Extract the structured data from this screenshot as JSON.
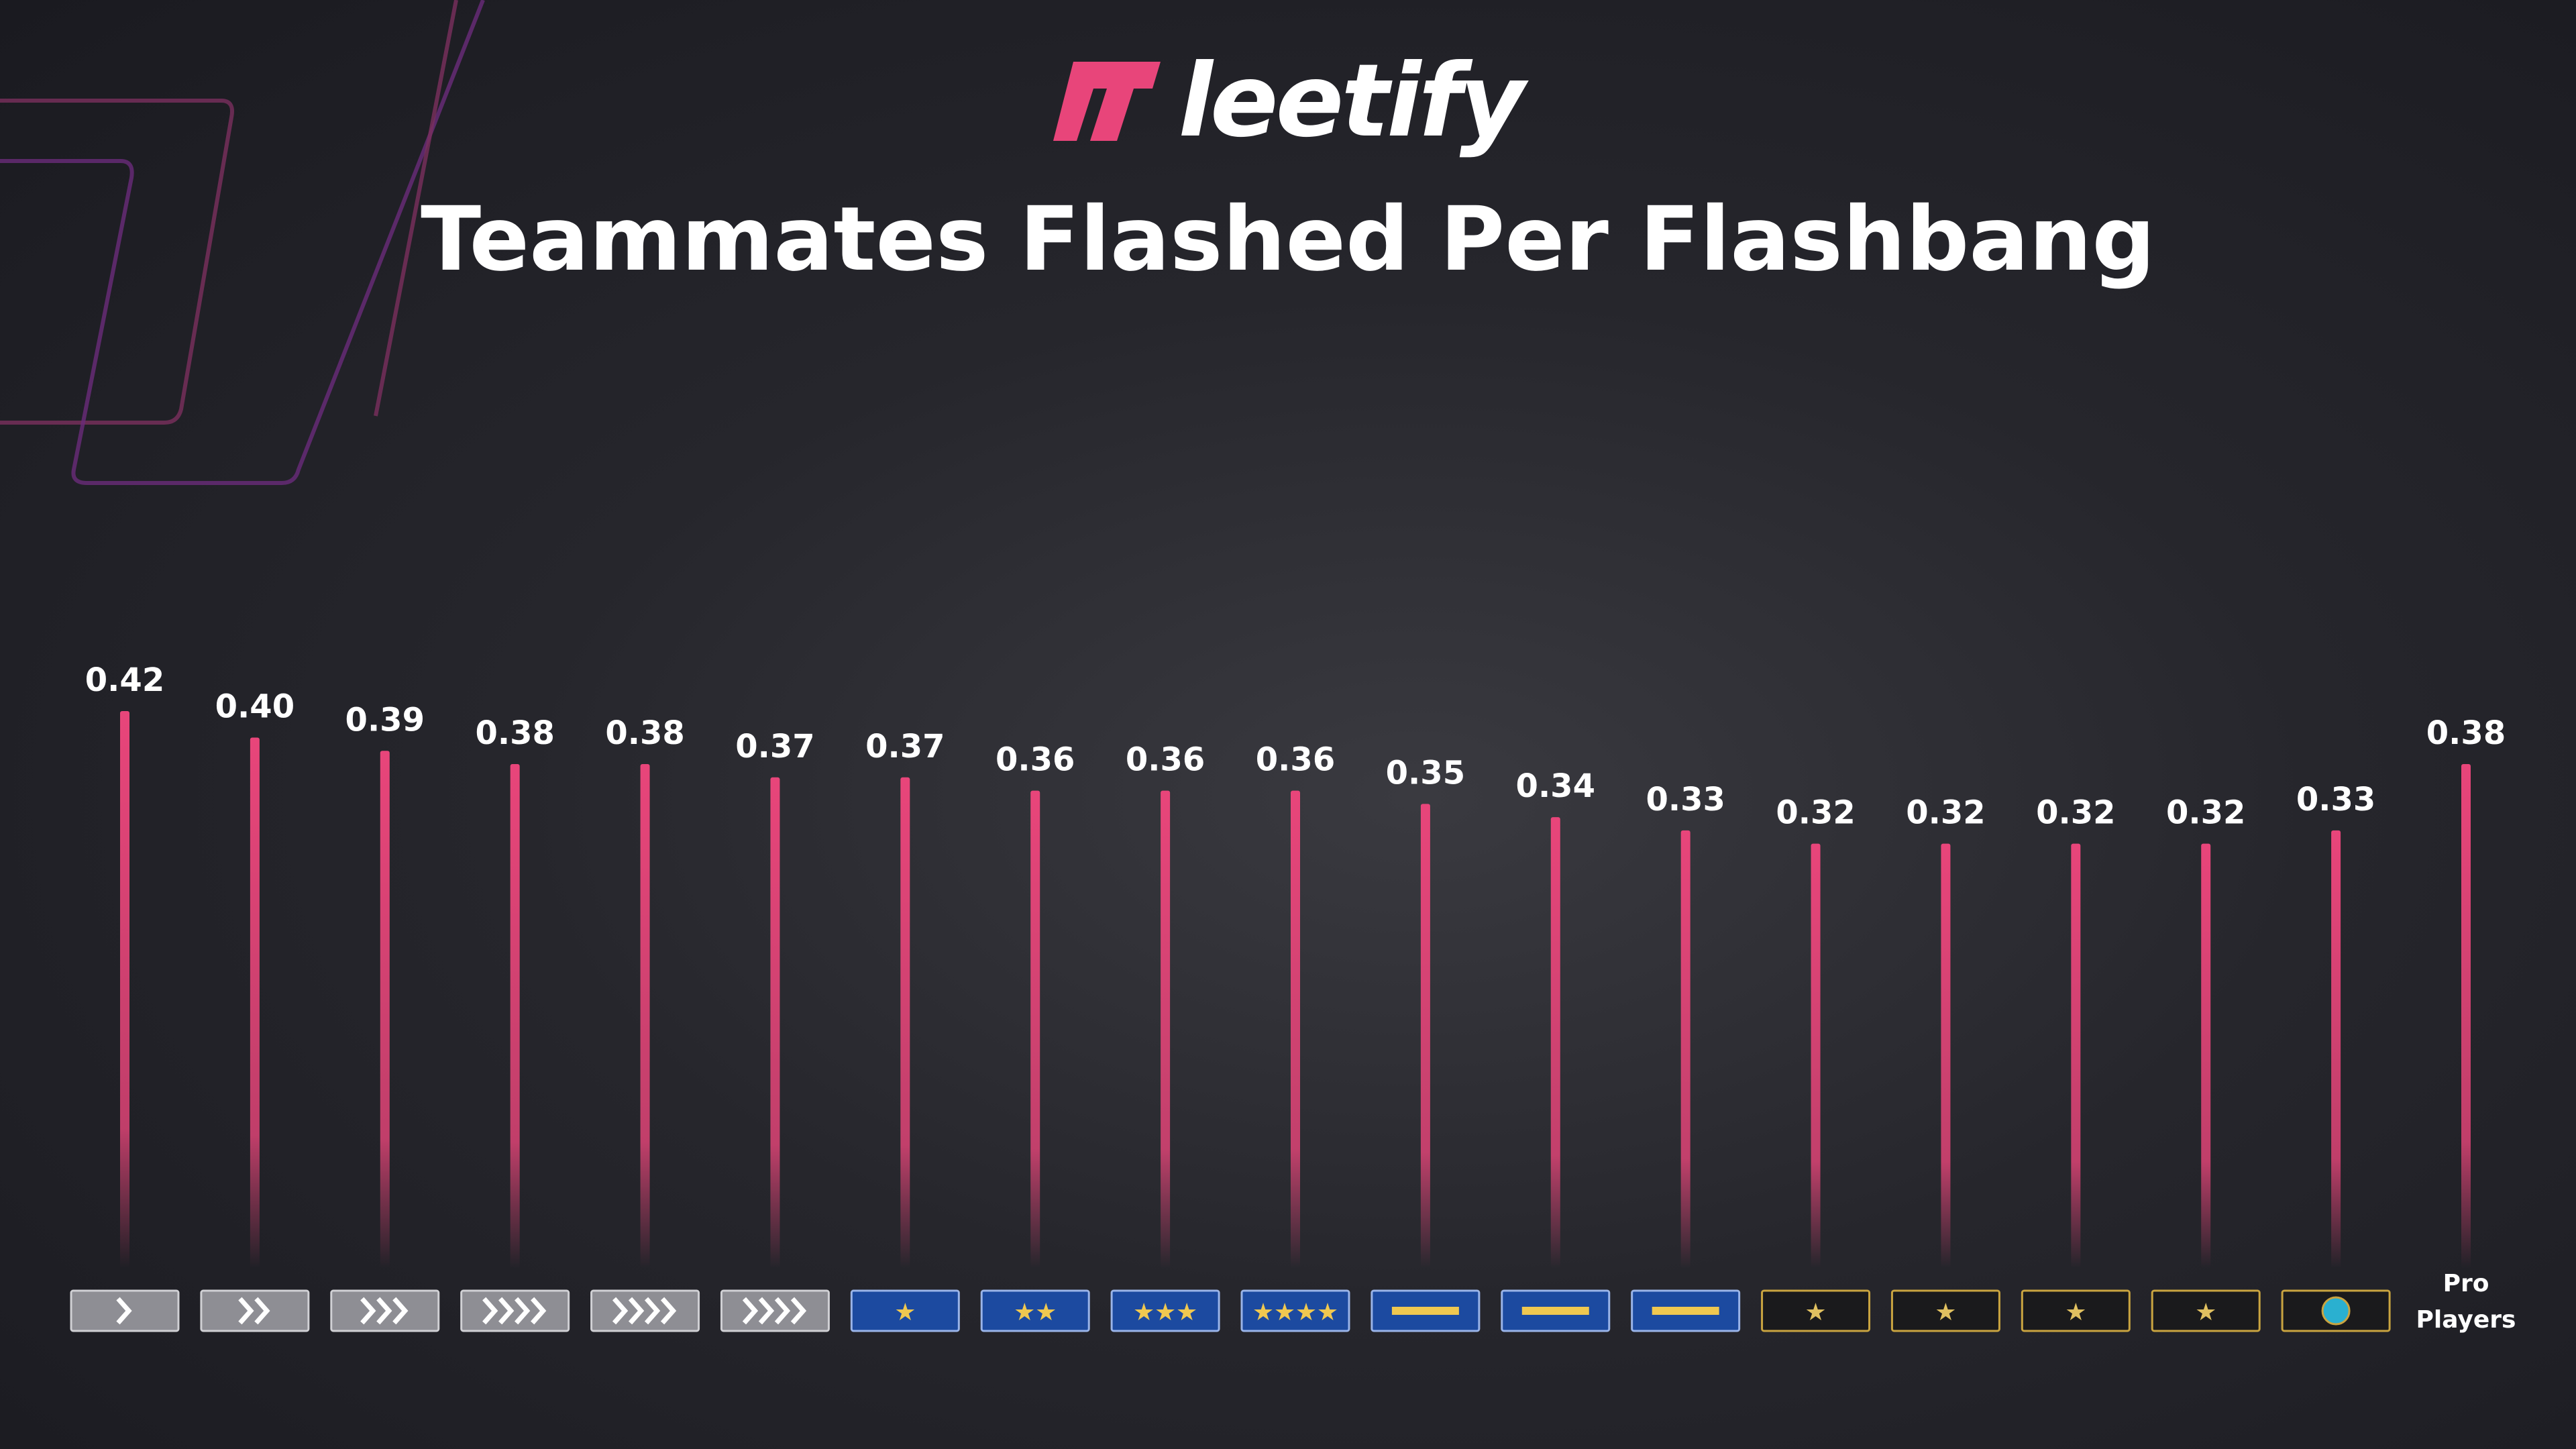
{
  "header": {
    "logo_text": "leetify",
    "title": "Teammates Flashed Per Flashbang"
  },
  "colors": {
    "accent": "#e8457a",
    "background": "#26262c",
    "silver": "#9a9aa0",
    "gold_nova": "#1b4fa8",
    "elite": "#1a1a1a"
  },
  "chart_data": {
    "type": "bar",
    "title": "Teammates Flashed Per Flashbang",
    "xlabel": "",
    "ylabel": "",
    "ylim": [
      0,
      0.42
    ],
    "grid": false,
    "categories": [
      {
        "rank_icon": "silver-1-badge",
        "label": ""
      },
      {
        "rank_icon": "silver-2-badge",
        "label": ""
      },
      {
        "rank_icon": "silver-3-badge",
        "label": ""
      },
      {
        "rank_icon": "silver-4-badge",
        "label": ""
      },
      {
        "rank_icon": "silver-elite-badge",
        "label": ""
      },
      {
        "rank_icon": "silver-elite-master-badge",
        "label": ""
      },
      {
        "rank_icon": "gold-nova-1-badge",
        "label": ""
      },
      {
        "rank_icon": "gold-nova-2-badge",
        "label": ""
      },
      {
        "rank_icon": "gold-nova-3-badge",
        "label": ""
      },
      {
        "rank_icon": "gold-nova-master-badge",
        "label": ""
      },
      {
        "rank_icon": "master-guardian-1-badge",
        "label": ""
      },
      {
        "rank_icon": "master-guardian-2-badge",
        "label": ""
      },
      {
        "rank_icon": "master-guardian-elite-badge",
        "label": ""
      },
      {
        "rank_icon": "distinguished-master-guardian-badge",
        "label": ""
      },
      {
        "rank_icon": "legendary-eagle-badge",
        "label": ""
      },
      {
        "rank_icon": "legendary-eagle-master-badge",
        "label": ""
      },
      {
        "rank_icon": "supreme-master-first-class-badge",
        "label": ""
      },
      {
        "rank_icon": "global-elite-badge",
        "label": ""
      },
      {
        "rank_icon": "pro-players-label",
        "label": "Pro Players"
      }
    ],
    "values": [
      0.42,
      0.4,
      0.39,
      0.38,
      0.38,
      0.37,
      0.37,
      0.36,
      0.36,
      0.36,
      0.35,
      0.34,
      0.33,
      0.32,
      0.32,
      0.32,
      0.32,
      0.33,
      0.38
    ],
    "value_labels": [
      "0.42",
      "0.40",
      "0.39",
      "0.38",
      "0.38",
      "0.37",
      "0.37",
      "0.36",
      "0.36",
      "0.36",
      "0.35",
      "0.34",
      "0.33",
      "0.32",
      "0.32",
      "0.32",
      "0.32",
      "0.33",
      "0.38"
    ]
  }
}
